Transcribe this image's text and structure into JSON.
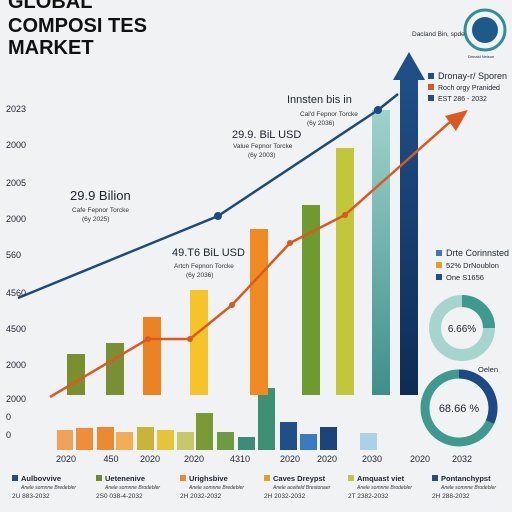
{
  "title": [
    "GLOBAL",
    "COMPOSI TES",
    "MARKET"
  ],
  "badge": {
    "name": "Dacland Bin, spde",
    "sub": "Dnnald Nelson"
  },
  "y_labels": [
    "2023",
    "2000",
    "2005",
    "2000",
    "560",
    "4560",
    "4500",
    "2000",
    "2000",
    "0",
    "0"
  ],
  "x_labels": [
    "2020",
    "450",
    "2020",
    "2020",
    "4310",
    "2020",
    "2020",
    "2030",
    "2020",
    "2032"
  ],
  "annotations": [
    {
      "head": "Innsten bis in",
      "line1": "Cal'd Fepnor Torcke",
      "line2": "(6y 2036)"
    },
    {
      "head": "29.9. BiL USD",
      "line1": "Value Fepnor Torcke",
      "line2": "(6y 2003)"
    },
    {
      "head": "29.9 Bilion",
      "line1": "Cafe Fepnor Torcke",
      "line2": "(6y 2025)"
    },
    {
      "head": "49.T6 BiL USD",
      "line1": "Artch Fepnon Torcke",
      "line2": "(6y 2036)"
    }
  ],
  "legend_top": [
    "Dronay-r/ Sporen",
    "Roch orgy Pranided",
    "EST 286 - 2032"
  ],
  "legend_mid": [
    "Drte Corinnsted",
    "52% DrNoublon",
    "One S1656"
  ],
  "donuts": {
    "upper": "6.66%",
    "caption": "Oelen",
    "lower": "68.66 %"
  },
  "bottom_legend": [
    {
      "name": "Aulbovvive",
      "desc": "Anele somnne Bredebler",
      "range": "2U 883-2032"
    },
    {
      "name": "Uetenenive",
      "desc": "Anele somnne Brodebler",
      "range": "2S0 038-4-2032"
    },
    {
      "name": "Urighsbive",
      "desc": "Anele somnne Bredebler",
      "range": "2H 2032-2032"
    },
    {
      "name": "Caves Dreypst",
      "desc": "Anele aceiteld Brestonaer",
      "range": "2H 2032-2032"
    },
    {
      "name": "Amquast viet",
      "desc": "Anele somnne Brodebler",
      "range": "2T 2382-2032"
    },
    {
      "name": "Pontanchypst",
      "desc": "Anele somnne Brodebler",
      "range": "2H 288-2032"
    }
  ]
}
